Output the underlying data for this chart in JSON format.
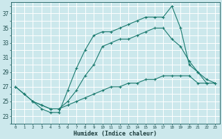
{
  "xlabel": "Humidex (Indice chaleur)",
  "background_color": "#cce8ec",
  "grid_color": "#ffffff",
  "line_color": "#1a7a6e",
  "xlim": [
    -0.5,
    23.5
  ],
  "ylim": [
    22.0,
    38.5
  ],
  "xticks": [
    0,
    1,
    2,
    3,
    4,
    5,
    6,
    7,
    8,
    9,
    10,
    11,
    12,
    13,
    14,
    15,
    16,
    17,
    18,
    19,
    20,
    21,
    22,
    23
  ],
  "yticks": [
    23,
    25,
    27,
    29,
    31,
    33,
    35,
    37
  ],
  "line1_x": [
    0,
    1,
    2,
    3,
    4,
    5,
    6,
    7,
    8,
    9,
    10,
    11,
    12,
    13,
    14,
    15,
    16,
    17,
    18,
    19,
    20,
    21,
    22
  ],
  "line1_y": [
    27.0,
    26.0,
    25.0,
    24.0,
    23.5,
    23.5,
    26.5,
    29.5,
    32.0,
    34.0,
    34.5,
    34.5,
    35.0,
    35.5,
    36.0,
    36.5,
    36.5,
    36.5,
    38.0,
    35.0,
    30.0,
    29.0,
    27.5
  ],
  "line2_x": [
    0,
    1,
    2,
    3,
    4,
    5,
    6,
    7,
    8,
    9,
    10,
    11,
    12,
    13,
    14,
    15,
    16,
    17,
    18,
    19,
    20,
    21,
    22,
    23
  ],
  "line2_y": [
    27.0,
    26.0,
    25.0,
    24.5,
    24.0,
    24.0,
    25.0,
    26.5,
    28.5,
    30.0,
    32.5,
    33.0,
    33.5,
    33.5,
    34.0,
    34.5,
    35.0,
    35.0,
    33.5,
    32.5,
    30.5,
    29.0,
    28.0,
    27.5
  ],
  "line3_x": [
    2,
    3,
    4,
    5,
    6,
    7,
    8,
    9,
    10,
    11,
    12,
    13,
    14,
    15,
    16,
    17,
    18,
    19,
    20,
    21,
    22,
    23
  ],
  "line3_y": [
    25.0,
    24.5,
    24.0,
    24.0,
    24.5,
    25.0,
    25.5,
    26.0,
    26.5,
    27.0,
    27.0,
    27.5,
    27.5,
    28.0,
    28.0,
    28.5,
    28.5,
    28.5,
    28.5,
    27.5,
    27.5,
    27.5
  ]
}
